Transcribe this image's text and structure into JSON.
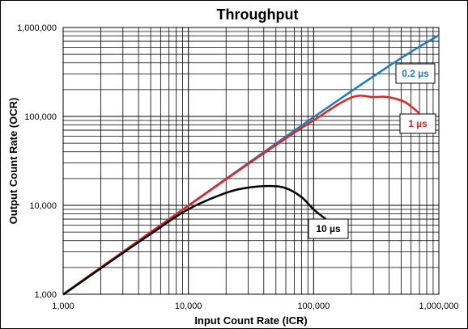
{
  "chart_data": {
    "type": "line",
    "title": "Throughput",
    "xlabel": "Input Count Rate (ICR)",
    "ylabel": "Output Count Rate (OCR)",
    "x_scale": "log",
    "y_scale": "log",
    "xlim": [
      1000,
      1000000
    ],
    "ylim": [
      1000,
      1000000
    ],
    "grid": true,
    "legend": "inline labels",
    "x_ticks": [
      "1,000",
      "10,000",
      "100,000",
      "1,000,000"
    ],
    "y_ticks": [
      "1,000",
      "10,000",
      "100,000",
      "1,000,000"
    ],
    "series": [
      {
        "name": "0.2 µs",
        "color": "#1f7bc0",
        "x": [
          1000,
          2000,
          5000,
          10000,
          20000,
          50000,
          100000,
          200000,
          400000,
          600000,
          1000000
        ],
        "y": [
          1000,
          2000,
          4990,
          9980,
          19920,
          49500,
          98000,
          192000,
          369000,
          532000,
          819000
        ]
      },
      {
        "name": "1 µs",
        "color": "#e8221f",
        "x": [
          1000,
          2000,
          5000,
          10000,
          20000,
          50000,
          100000,
          200000,
          300000,
          370000,
          450000,
          550000,
          700000
        ],
        "y": [
          1000,
          2000,
          4975,
          9900,
          19600,
          47600,
          90500,
          163000,
          165000,
          166000,
          158000,
          142000,
          108000
        ]
      },
      {
        "name": "10 µs",
        "color": "#000000",
        "x": [
          1000,
          2000,
          5000,
          10000,
          20000,
          30000,
          45000,
          60000,
          80000,
          100000,
          125000
        ],
        "y": [
          990,
          1960,
          4760,
          9050,
          13800,
          15800,
          16500,
          15600,
          12400,
          9000,
          7000
        ]
      }
    ]
  }
}
